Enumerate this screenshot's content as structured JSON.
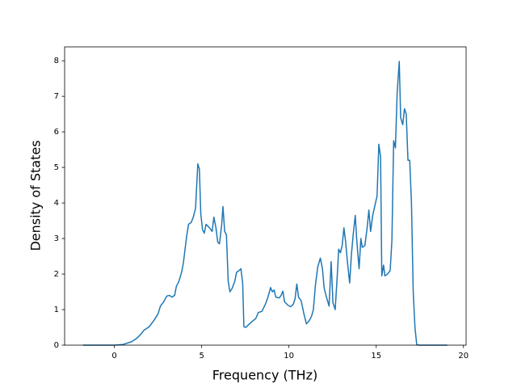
{
  "chart_data": {
    "type": "line",
    "xlabel": "Frequency (THz)",
    "ylabel": "Density of States",
    "x": [
      -1.8,
      -1,
      0,
      0.5,
      1,
      1.3,
      1.5,
      1.7,
      2.0,
      2.3,
      2.5,
      2.64,
      2.8,
      3.0,
      3.15,
      3.3,
      3.45,
      3.55,
      3.7,
      3.85,
      3.95,
      4.15,
      4.25,
      4.4,
      4.52,
      4.65,
      4.78,
      4.87,
      4.95,
      5.05,
      5.15,
      5.25,
      5.45,
      5.6,
      5.7,
      5.82,
      5.92,
      6.02,
      6.15,
      6.22,
      6.32,
      6.42,
      6.52,
      6.62,
      6.75,
      6.9,
      7.0,
      7.15,
      7.25,
      7.35,
      7.42,
      7.52,
      7.7,
      7.9,
      8.1,
      8.25,
      8.45,
      8.65,
      8.8,
      8.95,
      9.05,
      9.15,
      9.25,
      9.45,
      9.55,
      9.65,
      9.75,
      9.95,
      10.1,
      10.25,
      10.35,
      10.45,
      10.55,
      10.7,
      10.85,
      11.0,
      11.15,
      11.3,
      11.4,
      11.52,
      11.65,
      11.8,
      11.92,
      12.02,
      12.15,
      12.3,
      12.42,
      12.52,
      12.65,
      12.78,
      12.85,
      12.95,
      13.05,
      13.15,
      13.25,
      13.35,
      13.48,
      13.58,
      13.68,
      13.8,
      13.88,
      13.95,
      14.02,
      14.12,
      14.2,
      14.35,
      14.48,
      14.58,
      14.68,
      14.8,
      15.05,
      15.15,
      15.25,
      15.32,
      15.42,
      15.5,
      15.65,
      15.8,
      15.9,
      16.0,
      16.1,
      16.2,
      16.32,
      16.4,
      16.52,
      16.62,
      16.72,
      16.82,
      16.92,
      17.02,
      17.12,
      17.22,
      17.32,
      17.45,
      19.07
    ],
    "series": [
      {
        "name": "DOS",
        "color": "#1f77b4",
        "values": [
          0,
          0,
          0,
          0.02,
          0.1,
          0.2,
          0.3,
          0.42,
          0.52,
          0.72,
          0.88,
          1.1,
          1.2,
          1.38,
          1.4,
          1.35,
          1.4,
          1.65,
          1.8,
          2.05,
          2.3,
          3.1,
          3.4,
          3.45,
          3.6,
          3.85,
          5.1,
          4.95,
          3.7,
          3.25,
          3.15,
          3.4,
          3.3,
          3.2,
          3.6,
          3.3,
          2.9,
          2.85,
          3.4,
          3.9,
          3.2,
          3.1,
          1.8,
          1.5,
          1.6,
          1.8,
          2.05,
          2.1,
          2.15,
          1.75,
          0.52,
          0.5,
          0.58,
          0.67,
          0.75,
          0.92,
          0.95,
          1.15,
          1.35,
          1.62,
          1.5,
          1.55,
          1.35,
          1.33,
          1.4,
          1.52,
          1.22,
          1.12,
          1.08,
          1.15,
          1.3,
          1.72,
          1.35,
          1.25,
          0.9,
          0.6,
          0.68,
          0.82,
          1.0,
          1.7,
          2.2,
          2.45,
          2.15,
          1.6,
          1.35,
          1.1,
          2.35,
          1.2,
          1.0,
          2.05,
          2.7,
          2.6,
          2.8,
          3.3,
          2.9,
          2.35,
          1.75,
          2.55,
          3.1,
          3.65,
          3.0,
          2.55,
          2.15,
          3.0,
          2.75,
          2.8,
          3.3,
          3.8,
          3.2,
          3.65,
          4.2,
          5.65,
          5.3,
          1.95,
          2.25,
          1.95,
          2.0,
          2.1,
          2.95,
          5.75,
          5.55,
          7.1,
          7.98,
          6.4,
          6.2,
          6.65,
          6.5,
          5.2,
          5.2,
          4.0,
          1.5,
          0.5,
          0.02,
          0,
          0
        ]
      }
    ],
    "xlim": [
      -2.85,
      20.15
    ],
    "ylim": [
      0,
      8.39
    ],
    "xticks": [
      0,
      5,
      10,
      15,
      20
    ],
    "yticks": [
      0,
      1,
      2,
      3,
      4,
      5,
      6,
      7,
      8
    ]
  }
}
